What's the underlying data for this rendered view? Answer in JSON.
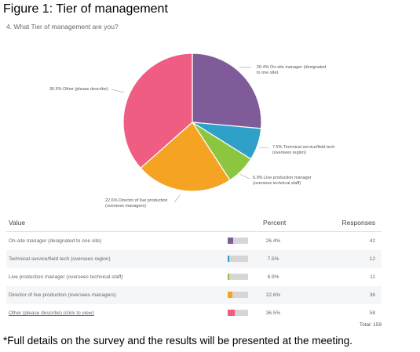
{
  "figure_title": "Figure 1: Tier of management",
  "question": "4. What Tier of management are you?",
  "chart_data": {
    "type": "pie",
    "slices": [
      {
        "label_lines": [
          "26.4% On-site manager (designated",
          "to one site)"
        ],
        "value": 26.4,
        "color": "#7f5c99"
      },
      {
        "label_lines": [
          "7.5% Technical service/field tech",
          "(oversees region)"
        ],
        "value": 7.5,
        "color": "#2fa1c9"
      },
      {
        "label_lines": [
          "6.9% Live production manager",
          "(oversees technical staff)"
        ],
        "value": 6.9,
        "color": "#8cc63f"
      },
      {
        "label_lines": [
          "22.6% Director of live production",
          "(oversees managers)"
        ],
        "value": 22.6,
        "color": "#f4a322"
      },
      {
        "label_lines": [
          "36.5% Other (please describe)"
        ],
        "value": 36.5,
        "color": "#f05d83"
      }
    ]
  },
  "table": {
    "headers": {
      "value": "Value",
      "percent": "Percent",
      "responses": "Responses"
    },
    "rows": [
      {
        "value": "On-site manager (designated to one site)",
        "percent": "26.4%",
        "fraction": 0.264,
        "responses": "42",
        "color": "#7f5c99"
      },
      {
        "value": "Technical service/field tech (oversees region)",
        "percent": "7.5%",
        "fraction": 0.075,
        "responses": "12",
        "color": "#2fa1c9"
      },
      {
        "value": "Live production manager (oversees technical staff)",
        "percent": "6.9%",
        "fraction": 0.069,
        "responses": "11",
        "color": "#8cc63f"
      },
      {
        "value": "Director of live production (oversees managers)",
        "percent": "22.6%",
        "fraction": 0.226,
        "responses": "36",
        "color": "#f4a322"
      },
      {
        "value": "Other (please describe) (click to view)",
        "percent": "36.5%",
        "fraction": 0.365,
        "responses": "58",
        "color": "#f05d83",
        "link": true
      }
    ],
    "total": "Total: 159"
  },
  "footnote": "*Full details on the survey and the results will be presented at the meeting."
}
